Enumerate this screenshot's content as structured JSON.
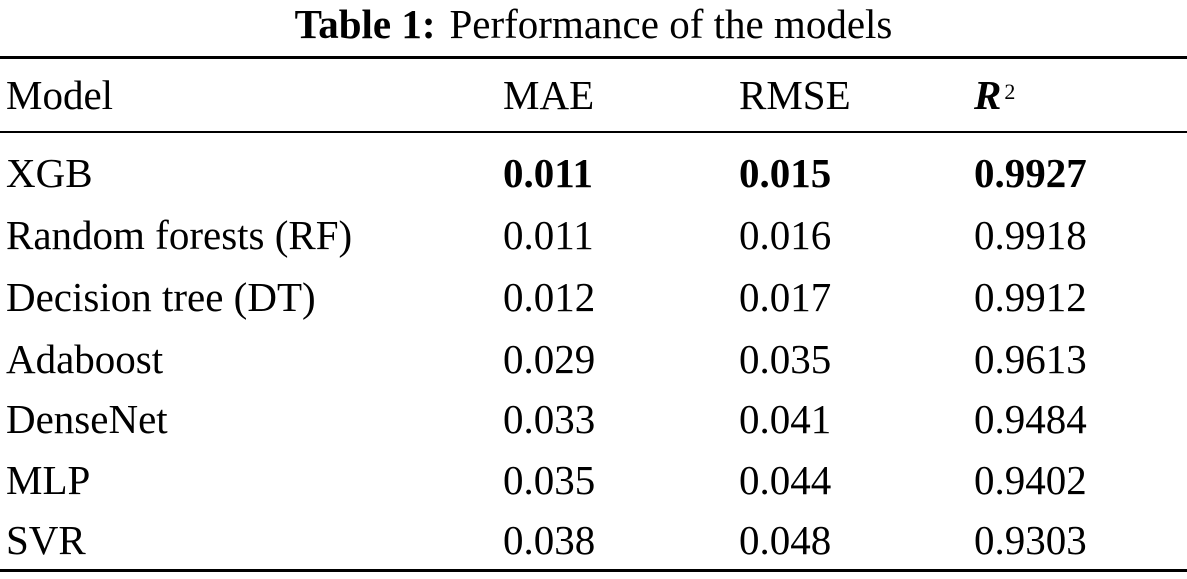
{
  "caption": {
    "label": "Table 1:",
    "text": "Performance of the models"
  },
  "table": {
    "headers": {
      "model": "Model",
      "mae": "MAE",
      "rmse": "RMSE",
      "r2_symbol": "R",
      "r2_superscript": "2"
    },
    "rows": [
      {
        "model": "XGB",
        "mae": "0.011",
        "rmse": "0.015",
        "r2": "0.9927"
      },
      {
        "model": "Random forests (RF)",
        "mae": "0.011",
        "rmse": "0.016",
        "r2": "0.9918"
      },
      {
        "model": "Decision tree (DT)",
        "mae": "0.012",
        "rmse": "0.017",
        "r2": "0.9912"
      },
      {
        "model": "Adaboost",
        "mae": "0.029",
        "rmse": "0.035",
        "r2": "0.9613"
      },
      {
        "model": "DenseNet",
        "mae": "0.033",
        "rmse": "0.041",
        "r2": "0.9484"
      },
      {
        "model": "MLP",
        "mae": "0.035",
        "rmse": "0.044",
        "r2": "0.9402"
      },
      {
        "model": "SVR",
        "mae": "0.038",
        "rmse": "0.048",
        "r2": "0.9303"
      }
    ]
  }
}
